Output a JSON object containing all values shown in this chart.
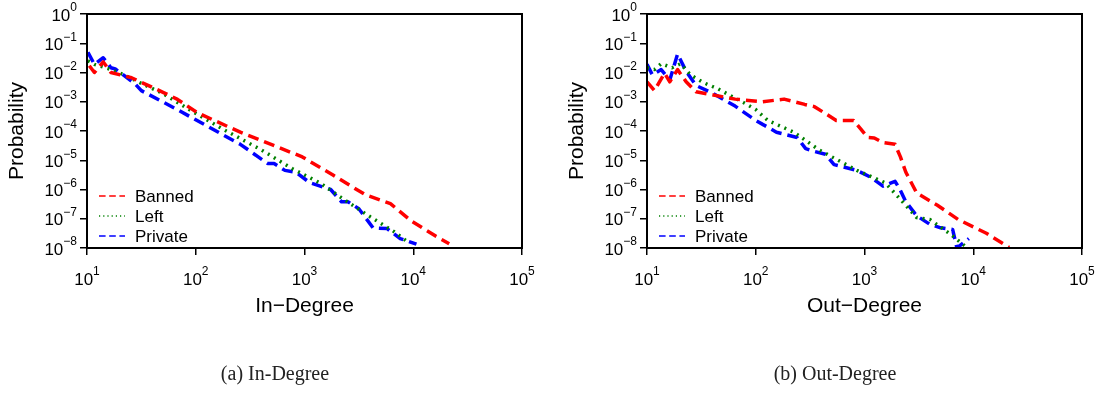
{
  "chart_data": [
    {
      "type": "line",
      "xlabel": "In−Degree",
      "ylabel": "Probability",
      "log": "xy",
      "grid": false,
      "legend": "bottom left",
      "marker": "none",
      "xlim": [
        10,
        100000
      ],
      "ylim": [
        1e-08,
        1
      ],
      "xticks": [
        {
          "value": 10,
          "label": "10$^{1}$"
        },
        {
          "value": 100,
          "label": "10$^{2}$"
        },
        {
          "value": 1000,
          "label": "10$^{3}$"
        },
        {
          "value": 10000,
          "label": "10$^{4}$"
        },
        {
          "value": 100000,
          "label": "10$^{5}$"
        }
      ],
      "yticks": [
        {
          "value": 1e-08,
          "label": "10$^{−8}$"
        },
        {
          "value": 1e-07,
          "label": "10$^{−7}$"
        },
        {
          "value": 1e-06,
          "label": "10$^{−6}$"
        },
        {
          "value": 1e-05,
          "label": "10$^{−5}$"
        },
        {
          "value": 0.0001,
          "label": "10$^{−4}$"
        },
        {
          "value": 0.001,
          "label": "10$^{−3}$"
        },
        {
          "value": 0.01,
          "label": "10$^{−2}$"
        },
        {
          "value": 0.1,
          "label": "10$^{−1}$"
        },
        {
          "value": 1,
          "label": "10$^{0}$"
        }
      ],
      "series": [
        {
          "name": "Banned",
          "color": "#ff0000",
          "line_style": "dashed",
          "x": [
            10.5,
            11.7,
            14.1,
            16.6,
            25.7,
            50,
            68,
            105,
            257,
            955,
            1860,
            3630,
            6170,
            9550,
            16200,
            21400
          ],
          "values": [
            0.017,
            0.01,
            0.023,
            0.01,
            0.0066,
            0.0021,
            0.0012,
            0.00041,
            9.1e-05,
            1.3e-05,
            3e-06,
            6.6e-07,
            3.3e-07,
            8.5e-08,
            2.5e-08,
            1.4e-08
          ]
        },
        {
          "name": "Left",
          "color": "#008000",
          "line_style": "dotted",
          "x": [
            10.2,
            11.7,
            16.6,
            21.9,
            29.5,
            50,
            87,
            191,
            398,
            776,
            1380,
            2340,
            3890,
            6610,
            8910
          ],
          "values": [
            0.025,
            0.019,
            0.0126,
            0.0083,
            0.0048,
            0.0019,
            0.00054,
            0.0001,
            2.3e-05,
            5.1e-06,
            1.7e-06,
            4.4e-07,
            1.26e-07,
            3.7e-08,
            1.6e-08
          ]
        },
        {
          "name": "Private",
          "color": "#0000ff",
          "line_style": "dashed",
          "x": [
            10.2,
            11.7,
            14.1,
            16.6,
            18.2,
            27.5,
            31.6,
            67.6,
            257,
            457,
            525,
            661,
            832,
            1120,
            1740,
            2190,
            2510,
            3160,
            4270,
            5750,
            7590,
            10700
          ],
          "values": [
            0.049,
            0.019,
            0.032,
            0.0145,
            0.0132,
            0.0042,
            0.0024,
            0.00054,
            3.5e-05,
            7.8e-06,
            7.8e-06,
            4.5e-06,
            3.9e-06,
            1.7e-06,
            1e-06,
            3.8e-07,
            3.8e-07,
            2.2e-07,
            4.9e-08,
            4.6e-08,
            2.1e-08,
            1.35e-08
          ]
        }
      ],
      "annotations": [
        "(a) In-Degree"
      ]
    },
    {
      "type": "line",
      "xlabel": "Out−Degree",
      "ylabel": "Probability",
      "log": "xy",
      "grid": false,
      "legend": "bottom left",
      "marker": "none",
      "xlim": [
        10,
        100000
      ],
      "ylim": [
        1e-08,
        1
      ],
      "xticks": [
        {
          "value": 10,
          "label": "10$^{1}$"
        },
        {
          "value": 100,
          "label": "10$^{2}$"
        },
        {
          "value": 1000,
          "label": "10$^{3}$"
        },
        {
          "value": 10000,
          "label": "10$^{4}$"
        },
        {
          "value": 100000,
          "label": "10$^{5}$"
        }
      ],
      "yticks": [
        {
          "value": 1e-08,
          "label": "10$^{−8}$"
        },
        {
          "value": 1e-07,
          "label": "10$^{−7}$"
        },
        {
          "value": 1e-06,
          "label": "10$^{−6}$"
        },
        {
          "value": 1e-05,
          "label": "10$^{−5}$"
        },
        {
          "value": 0.0001,
          "label": "10$^{−4}$"
        },
        {
          "value": 0.001,
          "label": "10$^{−3}$"
        },
        {
          "value": 0.01,
          "label": "10$^{−2}$"
        },
        {
          "value": 0.1,
          "label": "10$^{−1}$"
        },
        {
          "value": 1,
          "label": "10$^{0}$"
        }
      ],
      "series": [
        {
          "name": "Banned",
          "color": "#ff0000",
          "line_style": "dashed",
          "x": [
            10,
            11.7,
            14.5,
            16.2,
            19.1,
            22.9,
            28.2,
            40.7,
            64.6,
            115,
            182,
            282,
            347,
            550,
            794,
            1070,
            1230,
            1480,
            1910,
            2140,
            2400,
            3020,
            4680,
            7240,
            13200,
            21400
          ],
          "values": [
            0.0048,
            0.0024,
            0.0095,
            0.0048,
            0.0126,
            0.0048,
            0.0022,
            0.0017,
            0.00123,
            0.001,
            0.00123,
            0.00081,
            0.00068,
            0.00023,
            0.00023,
            6e-05,
            5.8e-05,
            4e-05,
            3.5e-05,
            1.3e-05,
            3.9e-06,
            7.6e-07,
            2.9e-07,
            9.5e-08,
            3.2e-08,
            1.05e-08
          ]
        },
        {
          "name": "Left",
          "color": "#008000",
          "line_style": "dotted",
          "x": [
            10,
            11.7,
            13.5,
            17.0,
            20.4,
            25.1,
            33.1,
            44.7,
            58.9,
            77.6,
            100,
            129,
            224,
            380,
            501,
            851,
            1550,
            2240,
            3020,
            3980,
            6310,
            8320
          ],
          "values": [
            0.0145,
            0.0126,
            0.02,
            0.0145,
            0.02,
            0.0083,
            0.0045,
            0.0028,
            0.0016,
            0.00093,
            0.00054,
            0.00023,
            9.1e-05,
            2.3e-05,
            1.3e-05,
            4.5e-06,
            1.7e-06,
            3.8e-07,
            1.1e-07,
            9.5e-08,
            2.8e-08,
            1.2e-08
          ]
        },
        {
          "name": "Private",
          "color": "#0000ff",
          "line_style": "dashed",
          "x": [
            10,
            11.2,
            13.5,
            16.2,
            19.1,
            22.9,
            28.2,
            40.7,
            64.6,
            100,
            155,
            240,
            288,
            347,
            437,
            525,
            851,
            1150,
            1480,
            1910,
            2090,
            2400,
            3020,
            3980,
            5010,
            6460,
            7080,
            8320,
            9120
          ],
          "values": [
            0.019,
            0.0083,
            0.0126,
            0.0055,
            0.043,
            0.011,
            0.0036,
            0.0019,
            0.00071,
            0.00023,
            9.1e-05,
            6e-05,
            2.5e-05,
            2e-05,
            1.6e-05,
            7.1e-06,
            4.5e-06,
            2.6e-06,
            1.3e-06,
            1.9e-06,
            1.1e-06,
            3.8e-07,
            1.26e-07,
            6.5e-08,
            4.9e-08,
            4.3e-08,
            1e-08,
            1.6e-08,
            2.1e-08
          ]
        }
      ],
      "annotations": [
        "(b) Out-Degree"
      ]
    }
  ]
}
